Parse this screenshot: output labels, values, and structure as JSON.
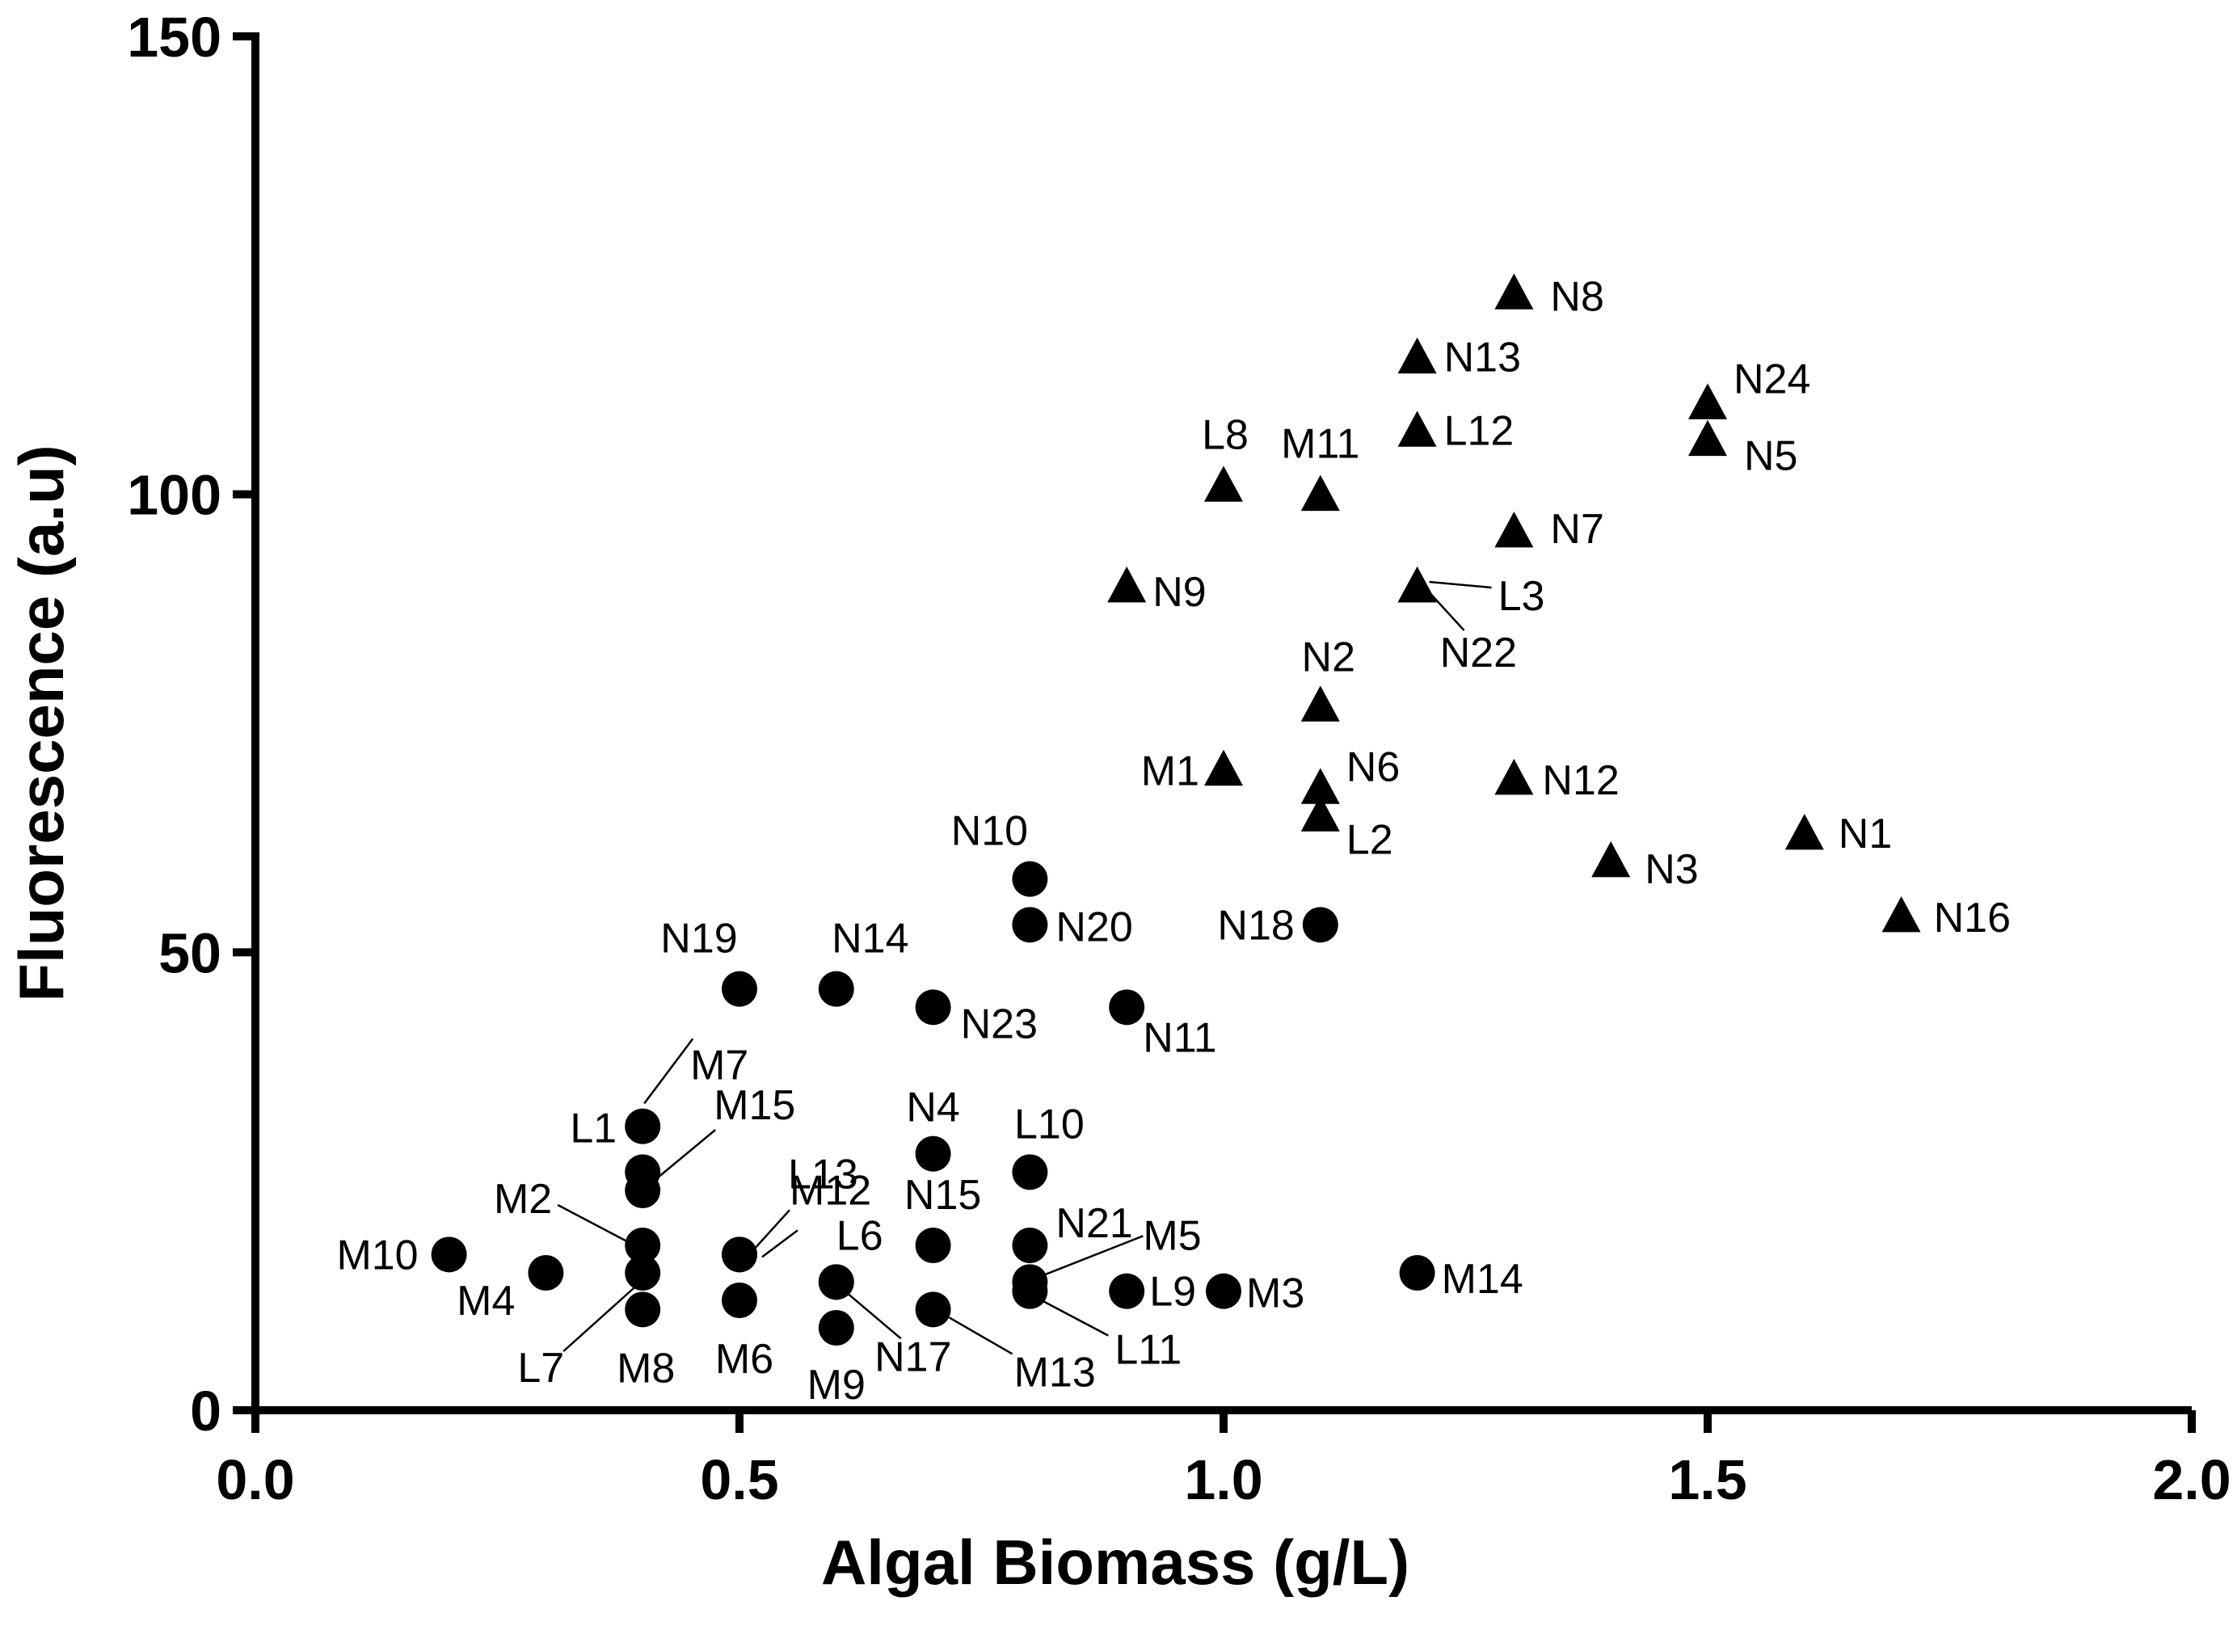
{
  "chart_data": {
    "type": "scatter",
    "title": "",
    "xlabel": "Algal Biomass (g/L)",
    "ylabel": "Fluorescence (a.u)",
    "xlim": [
      0,
      2
    ],
    "ylim": [
      0,
      150
    ],
    "xticks": [
      "0.0",
      "0.5",
      "1.0",
      "1.5",
      "2.0"
    ],
    "xtick_values": [
      0,
      0.5,
      1.0,
      1.5,
      2.0
    ],
    "yticks": [
      "0",
      "50",
      "100",
      "150"
    ],
    "ytick_values": [
      0,
      50,
      100,
      150
    ],
    "grid": false,
    "series": [
      {
        "name": "circle",
        "marker": "circle",
        "points": [
          {
            "label": "M10",
            "x": 0.2,
            "y": 17
          },
          {
            "label": "M4",
            "x": 0.3,
            "y": 15
          },
          {
            "label": "L1",
            "x": 0.4,
            "y": 31
          },
          {
            "label": "M7",
            "x": 0.4,
            "y": 26
          },
          {
            "label": "M15",
            "x": 0.4,
            "y": 24
          },
          {
            "label": "M2",
            "x": 0.4,
            "y": 18
          },
          {
            "label": "L7",
            "x": 0.4,
            "y": 15
          },
          {
            "label": "M8",
            "x": 0.4,
            "y": 11
          },
          {
            "label": "L13",
            "x": 0.5,
            "y": 17
          },
          {
            "label": "M12",
            "x": 0.5,
            "y": 17
          },
          {
            "label": "M6",
            "x": 0.5,
            "y": 12
          },
          {
            "label": "N19",
            "x": 0.5,
            "y": 46
          },
          {
            "label": "N14",
            "x": 0.6,
            "y": 46
          },
          {
            "label": "L6",
            "x": 0.6,
            "y": 14
          },
          {
            "label": "M9",
            "x": 0.6,
            "y": 9
          },
          {
            "label": "N17",
            "x": 0.6,
            "y": 14
          },
          {
            "label": "N23",
            "x": 0.7,
            "y": 44
          },
          {
            "label": "N4",
            "x": 0.7,
            "y": 28
          },
          {
            "label": "N15",
            "x": 0.7,
            "y": 18
          },
          {
            "label": "M13",
            "x": 0.7,
            "y": 11
          },
          {
            "label": "N10",
            "x": 0.8,
            "y": 58
          },
          {
            "label": "N20",
            "x": 0.8,
            "y": 53
          },
          {
            "label": "L10",
            "x": 0.8,
            "y": 26
          },
          {
            "label": "N21",
            "x": 0.8,
            "y": 18
          },
          {
            "label": "M5",
            "x": 0.8,
            "y": 14
          },
          {
            "label": "L11",
            "x": 0.8,
            "y": 13
          },
          {
            "label": "N11",
            "x": 0.9,
            "y": 44
          },
          {
            "label": "L9",
            "x": 0.9,
            "y": 13
          },
          {
            "label": "M3",
            "x": 1.0,
            "y": 13
          },
          {
            "label": "N18",
            "x": 1.1,
            "y": 53
          },
          {
            "label": "M14",
            "x": 1.2,
            "y": 15
          }
        ]
      },
      {
        "name": "triangle",
        "marker": "triangle",
        "points": [
          {
            "label": "N9",
            "x": 0.9,
            "y": 90
          },
          {
            "label": "L8",
            "x": 1.0,
            "y": 101
          },
          {
            "label": "M1",
            "x": 1.0,
            "y": 70
          },
          {
            "label": "M11",
            "x": 1.1,
            "y": 100
          },
          {
            "label": "N2",
            "x": 1.1,
            "y": 77
          },
          {
            "label": "N6",
            "x": 1.1,
            "y": 68
          },
          {
            "label": "L2",
            "x": 1.1,
            "y": 65
          },
          {
            "label": "N13",
            "x": 1.2,
            "y": 115
          },
          {
            "label": "L12",
            "x": 1.2,
            "y": 107
          },
          {
            "label": "L3",
            "x": 1.2,
            "y": 90
          },
          {
            "label": "N22",
            "x": 1.2,
            "y": 90
          },
          {
            "label": "N8",
            "x": 1.3,
            "y": 122
          },
          {
            "label": "N7",
            "x": 1.3,
            "y": 96
          },
          {
            "label": "N12",
            "x": 1.3,
            "y": 69
          },
          {
            "label": "N3",
            "x": 1.4,
            "y": 60
          },
          {
            "label": "N24",
            "x": 1.5,
            "y": 110
          },
          {
            "label": "N5",
            "x": 1.5,
            "y": 106
          },
          {
            "label": "N1",
            "x": 1.6,
            "y": 63
          },
          {
            "label": "N16",
            "x": 1.7,
            "y": 54
          }
        ]
      }
    ]
  }
}
